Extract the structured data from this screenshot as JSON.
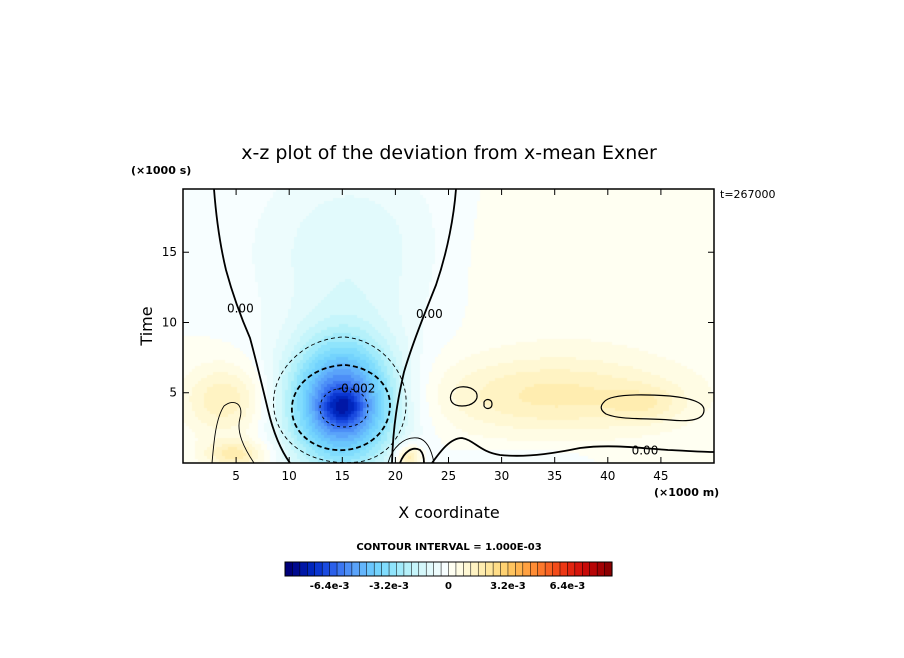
{
  "chart_data": {
    "type": "heatmap",
    "title": "x-z plot of the deviation from x-mean Exner",
    "xlabel": "X coordinate",
    "ylabel": "Time",
    "x_unit": "(×1000 m)",
    "y_unit": "(×1000 s)",
    "time_stamp": "t=267000",
    "xlim": [
      0,
      50
    ],
    "ylim": [
      0,
      19.5
    ],
    "x_ticks": [
      5,
      10,
      15,
      20,
      25,
      30,
      35,
      40,
      45
    ],
    "x_tick_labels": [
      "5",
      "10",
      "15",
      "20",
      "25",
      "30",
      "35",
      "40",
      "45"
    ],
    "y_ticks": [
      5,
      10,
      15
    ],
    "y_tick_labels": [
      "5",
      "10",
      "15"
    ],
    "contour_interval_text": "CONTOUR INTERVAL = 1.000E-03",
    "contour_labels": [
      {
        "text": "0.00",
        "x": 5.4,
        "y": 11.0
      },
      {
        "text": "0.00",
        "x": 23.2,
        "y": 10.6
      },
      {
        "text": "-0.002",
        "x": 16.3,
        "y": 5.3
      },
      {
        "text": "0.00",
        "x": 43.5,
        "y": 0.9
      }
    ],
    "colorbar": {
      "min": -0.0088,
      "max": 0.0088,
      "n_levels": 44,
      "tick_values": [
        -0.0064,
        -0.0032,
        0,
        0.0032,
        0.0064
      ],
      "tick_labels": [
        "-6.4e-3",
        "-3.2e-3",
        "0",
        "3.2e-3",
        "6.4e-3"
      ],
      "colors": [
        "#00007a",
        "#000a8f",
        "#0017a6",
        "#0026bd",
        "#0a36d1",
        "#1a4be0",
        "#2b60ea",
        "#3c77f2",
        "#4c8ef7",
        "#5aa3fa",
        "#63b5fc",
        "#6ac6fd",
        "#73d3fd",
        "#80dcfd",
        "#8fe4fc",
        "#a2ebfb",
        "#b5f1fa",
        "#c6f5fb",
        "#d5f8fb",
        "#e2fafc",
        "#edfcfd",
        "#f7feff",
        "#fffff2",
        "#fffce4",
        "#fff8d4",
        "#fff3c3",
        "#ffedb0",
        "#ffe69c",
        "#ffdd87",
        "#ffd272",
        "#ffc45f",
        "#ffb44f",
        "#ffa141",
        "#ff8d35",
        "#fd782b",
        "#f96222",
        "#f34c1a",
        "#ec3714",
        "#e2240f",
        "#d6140b",
        "#c80a08",
        "#b70506",
        "#a30204",
        "#8c0002"
      ]
    },
    "field_blobs": [
      {
        "name": "negative-center",
        "cx": 15.0,
        "cy": 4.2,
        "sx": 5.2,
        "sy": 4.6,
        "amp": -0.0062
      },
      {
        "name": "negative-core",
        "cx": 15.0,
        "cy": 4.0,
        "sx": 1.8,
        "sy": 1.2,
        "amp": -0.0018
      },
      {
        "name": "negative-column",
        "cx": 16.0,
        "cy": 15.0,
        "sx": 9.0,
        "sy": 6.5,
        "amp": -0.0012
      },
      {
        "name": "positive-left",
        "cx": 4.0,
        "cy": 4.5,
        "sx": 4.0,
        "sy": 2.5,
        "amp": 0.0016
      },
      {
        "name": "positive-left-base",
        "cx": 5.0,
        "cy": 0.6,
        "sx": 3.0,
        "sy": 1.0,
        "amp": 0.0018
      },
      {
        "name": "positive-right-band",
        "cx": 35.0,
        "cy": 4.8,
        "sx": 12.0,
        "sy": 2.8,
        "amp": 0.0017
      },
      {
        "name": "positive-right-blob",
        "cx": 43.5,
        "cy": 4.2,
        "sx": 3.5,
        "sy": 1.3,
        "amp": 0.0008
      },
      {
        "name": "positive-base-21",
        "cx": 21.2,
        "cy": 0.4,
        "sx": 1.2,
        "sy": 0.9,
        "amp": 0.0024
      },
      {
        "name": "positive-upper-right",
        "cx": 36.0,
        "cy": 14.0,
        "sx": 14.0,
        "sy": 6.0,
        "amp": 0.0004
      },
      {
        "name": "negative-right-base",
        "cx": 32.0,
        "cy": 0.4,
        "sx": 6.0,
        "sy": 0.8,
        "amp": -0.0004
      }
    ]
  }
}
